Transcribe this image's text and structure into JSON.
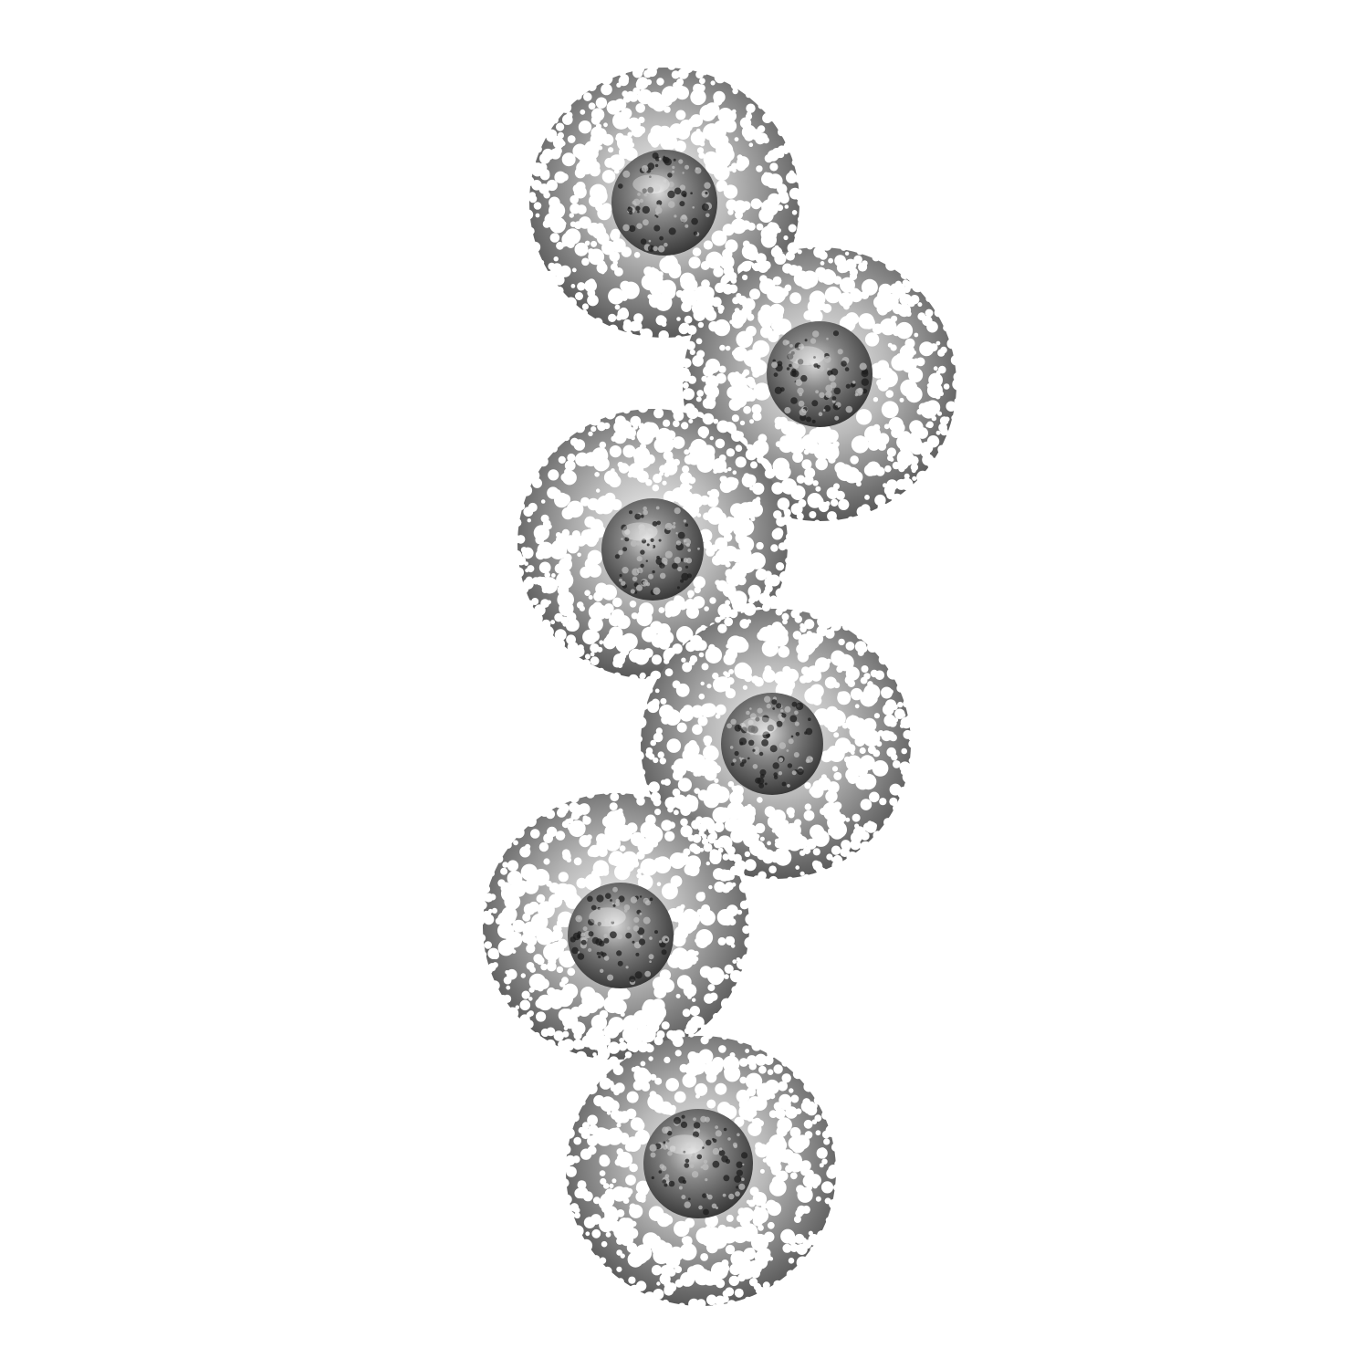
{
  "scene": {
    "subject": "perforated-metal-disc-wall-sculpture",
    "disc_count": 6,
    "colors": {
      "background": "#ffffff",
      "metal_light": "#e6e6e6",
      "metal_mid": "#9a9a9a",
      "metal_dark": "#3c3c3c",
      "rod": "#6d6d6d"
    }
  }
}
